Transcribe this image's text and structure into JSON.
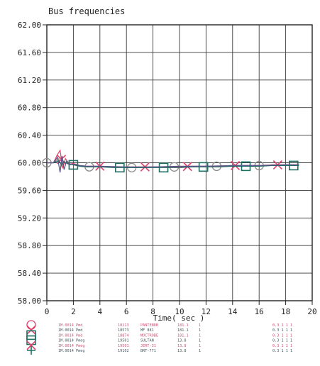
{
  "chart_data": {
    "type": "line",
    "title": "Bus frequencies",
    "xlabel": "Time( sec )",
    "ylabel": "",
    "xlim": [
      0,
      20
    ],
    "ylim": [
      58.0,
      62.0
    ],
    "x_ticks": [
      0,
      2,
      4,
      6,
      8,
      10,
      12,
      14,
      16,
      18,
      20
    ],
    "y_ticks": [
      58.0,
      58.4,
      58.8,
      59.2,
      59.6,
      60.0,
      60.4,
      60.8,
      61.2,
      61.6,
      62.0
    ],
    "x_tick_labels": [
      "0",
      "2",
      "4",
      "6",
      "8",
      "10",
      "12",
      "14",
      "16",
      "18",
      "20"
    ],
    "y_tick_labels": [
      "58.00",
      "58.40",
      "58.80",
      "59.20",
      "59.60",
      "60.00",
      "60.40",
      "60.80",
      "61.20",
      "61.60",
      "62.00"
    ],
    "grid": true,
    "series": [
      {
        "color": "#8a8a8a",
        "marker": "circle",
        "x": [
          0,
          0.5,
          0.9,
          1.1,
          1.3,
          1.6,
          2.0,
          2.5,
          3.0,
          4.0,
          5.0,
          6.0,
          7.0,
          8.0,
          9.0,
          10.0,
          11.0,
          12.0,
          13.0,
          14.0,
          15.0,
          16.0,
          17.0,
          18.0,
          19.0
        ],
        "values": [
          60.0,
          60.0,
          60.06,
          59.95,
          60.02,
          59.98,
          59.97,
          59.95,
          59.94,
          59.95,
          59.94,
          59.93,
          59.93,
          59.94,
          59.94,
          59.94,
          59.94,
          59.95,
          59.95,
          59.96,
          59.96,
          59.96,
          59.97,
          59.97,
          59.97
        ],
        "marker_x": [
          0,
          3.2,
          6.4,
          9.6,
          12.8,
          16.0
        ]
      },
      {
        "color": "#e0406a",
        "marker": "x",
        "x": [
          0,
          0.5,
          0.8,
          1.0,
          1.2,
          1.4,
          1.7,
          2.0,
          2.5,
          3.0,
          4.0,
          5.0,
          6.0,
          7.0,
          8.0,
          9.0,
          10.0,
          11.0,
          12.0,
          13.0,
          14.0,
          15.0,
          16.0,
          17.0,
          18.0,
          19.0
        ],
        "values": [
          60.0,
          60.0,
          60.12,
          60.18,
          59.92,
          60.06,
          59.98,
          59.99,
          59.96,
          59.95,
          59.95,
          59.94,
          59.94,
          59.94,
          59.94,
          59.94,
          59.94,
          59.95,
          59.95,
          59.95,
          59.96,
          59.96,
          59.96,
          59.97,
          59.97,
          59.97
        ],
        "marker_x": [
          1.1,
          4.0,
          7.4,
          10.6,
          14.2,
          17.4
        ]
      },
      {
        "color": "#1e6e63",
        "marker": "square",
        "x": [
          0,
          0.5,
          0.9,
          1.1,
          1.3,
          1.6,
          2.0,
          2.5,
          3.0,
          4.0,
          5.0,
          6.0,
          7.0,
          8.0,
          9.0,
          10.0,
          11.0,
          12.0,
          13.0,
          14.0,
          15.0,
          16.0,
          17.0,
          18.0,
          19.0
        ],
        "values": [
          60.0,
          60.0,
          60.03,
          59.97,
          60.01,
          59.99,
          59.97,
          59.95,
          59.94,
          59.94,
          59.93,
          59.93,
          59.93,
          59.93,
          59.93,
          59.93,
          59.94,
          59.94,
          59.94,
          59.95,
          59.95,
          59.95,
          59.96,
          59.96,
          59.96
        ],
        "marker_x": [
          2.0,
          5.5,
          8.8,
          11.8,
          15.0,
          18.6
        ]
      },
      {
        "color": "#555588",
        "marker": "none",
        "x": [
          0,
          0.5,
          0.8,
          1.0,
          1.15,
          1.3,
          1.5,
          1.7,
          2.0,
          2.5,
          3.0,
          4.0,
          6.0,
          8.0,
          10.0,
          12.0,
          14.0,
          16.0,
          18.0,
          19.0
        ],
        "values": [
          60.0,
          60.0,
          60.08,
          59.86,
          60.1,
          59.9,
          60.03,
          59.97,
          59.98,
          59.96,
          59.95,
          59.95,
          59.94,
          59.94,
          59.95,
          59.95,
          59.96,
          59.96,
          59.97,
          59.97
        ],
        "marker_x": []
      }
    ],
    "legend_rows": [
      {
        "name": "1M.0014 Pmd",
        "bus": "18113",
        "desc": "PANTENDB",
        "val": "181.1",
        "flag": "1",
        "col6": "0.3 1 1 1"
      },
      {
        "name": "1M.0014 Pmd",
        "bus": "18573",
        "desc": "MF 881",
        "val": "181.1",
        "flag": "1",
        "col6": "0.3 1 1 1"
      },
      {
        "name": "1M.0014 Pmd",
        "bus": "18874",
        "desc": "MOCTROBE",
        "val": "181.1",
        "flag": "1",
        "col6": "0.3 1 1 1"
      },
      {
        "name": "1M.0014 Pmeg",
        "bus": "19501",
        "desc": "SULTAN",
        "val": "13.8",
        "flag": "1",
        "col6": "0.3 1 1 1"
      },
      {
        "name": "1M.0014 Pmeg",
        "bus": "19501",
        "desc": "JERT-31",
        "val": "13.8",
        "flag": "1",
        "col6": "0.3 1 1 1"
      },
      {
        "name": "1M.0014 Pmeg",
        "bus": "19102",
        "desc": "BRT-771",
        "val": "13.8",
        "flag": "1",
        "col6": "0.3 1 1 1"
      }
    ],
    "legend_symbols": [
      {
        "shape": "circle",
        "color": "#e0406a"
      },
      {
        "shape": "x",
        "color": "#e0406a"
      },
      {
        "shape": "square",
        "color": "#1e6e63"
      },
      {
        "shape": "square",
        "color": "#1e6e63"
      },
      {
        "shape": "x",
        "color": "#e0406a"
      },
      {
        "shape": "plus",
        "color": "#1e6e63"
      }
    ]
  }
}
